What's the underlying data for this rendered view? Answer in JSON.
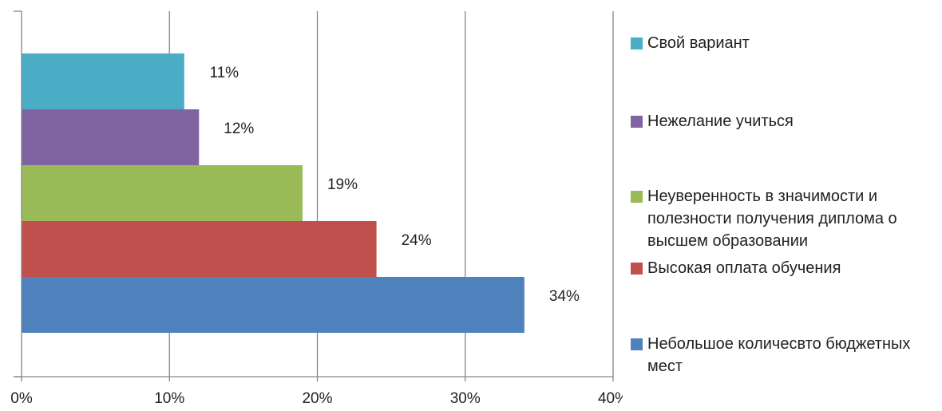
{
  "chart_data": {
    "type": "bar",
    "orientation": "horizontal",
    "stacked": false,
    "grid": true,
    "legend_placement": "right",
    "xlim": [
      0,
      40
    ],
    "x_ticks": [
      "0%",
      "10%",
      "20%",
      "30%",
      "40%"
    ],
    "series": [
      {
        "name": "Небольшое количесвто бюджетных мест",
        "value": 34,
        "label": "34%",
        "color": "#4F81BD"
      },
      {
        "name": "Высокая оплата обучения",
        "value": 24,
        "label": "24%",
        "color": "#C0504D"
      },
      {
        "name": "Неуверенность в значимости и полезности получения диплома о высшем образовании",
        "value": 19,
        "label": "19%",
        "color": "#9BBB59"
      },
      {
        "name": "Нежелание учиться",
        "value": 12,
        "label": "12%",
        "color": "#8064A2"
      },
      {
        "name": "Свой вариант",
        "value": 11,
        "label": "11%",
        "color": "#4BACC6"
      }
    ],
    "legend_order": [
      "Свой вариант",
      "Нежелание учиться",
      "Неуверенность в значимости и полезности получения диплома о высшем образовании",
      "Высокая оплата обучения",
      "Небольшое количесвто бюджетных мест"
    ]
  }
}
